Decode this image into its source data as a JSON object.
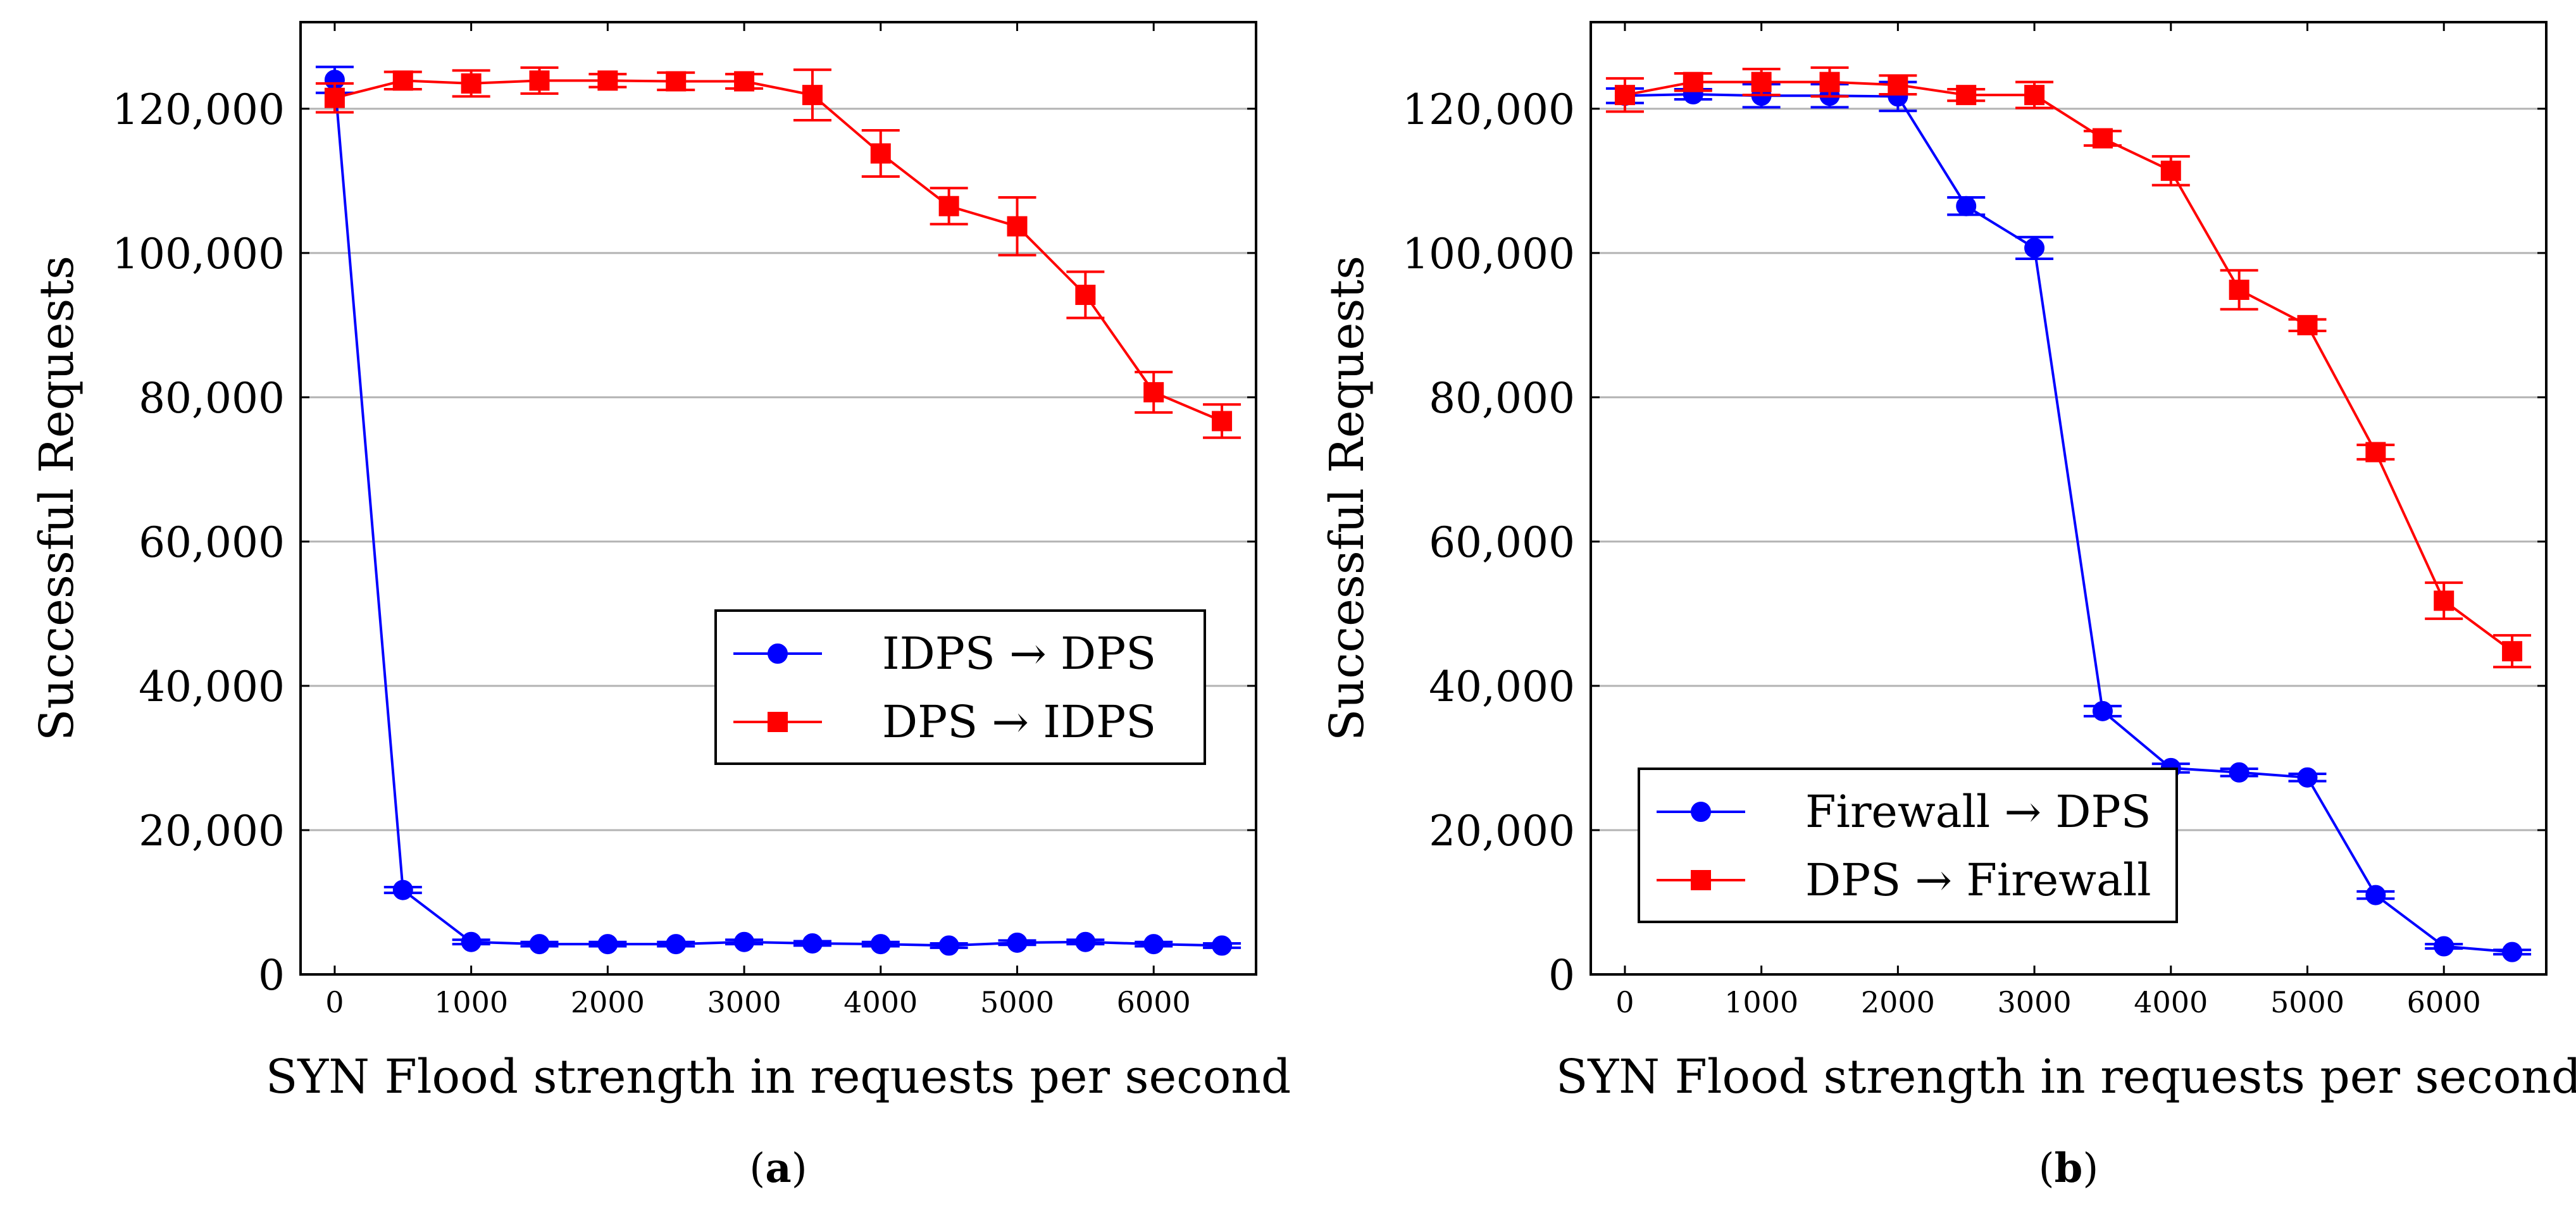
{
  "colors": {
    "series_blue": "#0000ff",
    "series_red": "#ff0000",
    "grid": "#b3b3b3",
    "axis": "#000000"
  },
  "chart_data": [
    {
      "type": "line",
      "caption": "(a)",
      "caption_letter": "a",
      "xlabel": "SYN Flood strength in requests per second",
      "ylabel": "Successful Requests",
      "xlim": [
        -250,
        6750
      ],
      "ylim": [
        0,
        132000
      ],
      "xticks": [
        0,
        1000,
        2000,
        3000,
        4000,
        5000,
        6000
      ],
      "xtick_labels": [
        "0",
        "1000",
        "2000",
        "3000",
        "4000",
        "5000",
        "6000"
      ],
      "yticks": [
        0,
        20000,
        40000,
        60000,
        80000,
        100000,
        120000
      ],
      "ytick_labels": [
        "0",
        "20,000",
        "40,000",
        "60,000",
        "80,000",
        "100,000",
        "120,000"
      ],
      "grid": "horizontal",
      "legend_position": "center-right",
      "x": [
        0,
        500,
        1000,
        1500,
        2000,
        2500,
        3000,
        3500,
        4000,
        4500,
        5000,
        5500,
        6000,
        6500
      ],
      "series": [
        {
          "name": "IDPS → DPS",
          "color": "#0000ff",
          "marker": "circle",
          "values": [
            124000,
            11700,
            4500,
            4200,
            4200,
            4200,
            4500,
            4300,
            4200,
            4000,
            4400,
            4500,
            4200,
            4000
          ],
          "errors": [
            1800,
            400,
            300,
            300,
            300,
            300,
            300,
            300,
            300,
            300,
            300,
            300,
            300,
            300
          ]
        },
        {
          "name": "DPS → IDPS",
          "color": "#ff0000",
          "marker": "square",
          "values": [
            121500,
            123900,
            123500,
            123900,
            123900,
            123800,
            123800,
            121900,
            113800,
            106500,
            103700,
            94200,
            80700,
            76700
          ],
          "errors": [
            2000,
            1200,
            1800,
            1800,
            900,
            1200,
            1000,
            3500,
            3200,
            2500,
            4000,
            3200,
            2800,
            2300
          ]
        }
      ]
    },
    {
      "type": "line",
      "caption": "(b)",
      "caption_letter": "b",
      "xlabel": "SYN Flood strength in requests per second",
      "ylabel": "Successful Requests",
      "xlim": [
        -250,
        6750
      ],
      "ylim": [
        0,
        132000
      ],
      "xticks": [
        0,
        1000,
        2000,
        3000,
        4000,
        5000,
        6000
      ],
      "xtick_labels": [
        "0",
        "1000",
        "2000",
        "3000",
        "4000",
        "5000",
        "6000"
      ],
      "yticks": [
        0,
        20000,
        40000,
        60000,
        80000,
        100000,
        120000
      ],
      "ytick_labels": [
        "0",
        "20,000",
        "40,000",
        "60,000",
        "80,000",
        "100,000",
        "120,000"
      ],
      "grid": "horizontal",
      "legend_position": "bottom-left",
      "x": [
        0,
        500,
        1000,
        1500,
        2000,
        2500,
        3000,
        3500,
        4000,
        4500,
        5000,
        5500,
        6000,
        6500
      ],
      "series": [
        {
          "name": "Firewall → DPS",
          "color": "#0000ff",
          "marker": "circle",
          "values": [
            121800,
            122000,
            121800,
            121800,
            121700,
            106500,
            100700,
            36500,
            28600,
            28000,
            27300,
            11000,
            3900,
            3100
          ],
          "errors": [
            1000,
            700,
            1600,
            1600,
            2000,
            1200,
            1500,
            700,
            600,
            500,
            500,
            500,
            300,
            300
          ]
        },
        {
          "name": "DPS → Firewall",
          "color": "#ff0000",
          "marker": "square",
          "values": [
            121900,
            123700,
            123700,
            123700,
            123300,
            121900,
            121900,
            115900,
            111400,
            94900,
            90000,
            72400,
            51800,
            44800
          ],
          "errors": [
            2300,
            1200,
            1800,
            2000,
            1300,
            800,
            1800,
            1000,
            2000,
            2700,
            800,
            1000,
            2500,
            2200
          ]
        }
      ]
    }
  ]
}
